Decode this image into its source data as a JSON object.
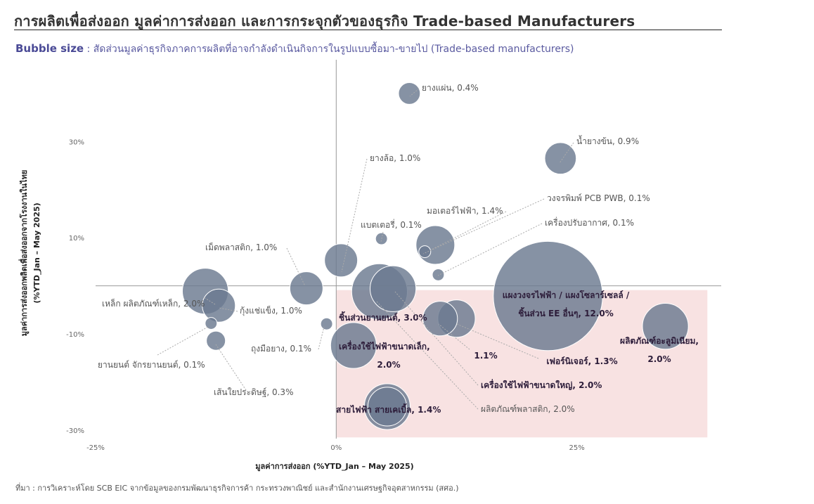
{
  "title": "การผลิตเพื่อส่งออก มูลค่าการส่งออก และการกระจุกตัวของธุรกิจ Trade-based Manufacturers",
  "subtitle": {
    "bold": "Bubble size",
    "text": " : สัดส่วนมูลค่าธุรกิจภาคการผลิตที่อาจกำลังดำเนินกิจการในรูปแบบซื้อมา-ขายไป (Trade-based manufacturers)"
  },
  "source": "ที่มา : การวิเคราะห์โดย SCB EIC จากข้อมูลของกรมพัฒนาธุรกิจการค้า กระทรวงพาณิชย์ และสำนักงานเศรษฐกิจอุตสาหกรรม (สศอ.)",
  "colors": {
    "bubble": "#6b7a90",
    "highlight": "#f8e2e2",
    "axis": "#999999"
  },
  "chart_data": {
    "type": "scatter",
    "xlabel": "มูลค่าการส่งออก (%YTD_Jan – May 2025)",
    "ylabel": "มูลค่าการส่งออกพลิตเพื่อส่งออกจากโรงงานในไทย\n(%YTD_Jan – May 2025)",
    "xlim": [
      -25,
      40
    ],
    "ylim": [
      -30,
      47
    ],
    "xticks": [
      {
        "v": -25,
        "t": "-25%"
      },
      {
        "v": 0,
        "t": "0%"
      },
      {
        "v": 25,
        "t": "25%"
      }
    ],
    "yticks": [
      {
        "v": 30,
        "t": "30%"
      },
      {
        "v": 10,
        "t": "10%"
      },
      {
        "v": -10,
        "t": "-10%"
      },
      {
        "v": -30,
        "t": "-30%"
      }
    ],
    "highlight_region": {
      "x": [
        0,
        39
      ],
      "y": [
        -31.5,
        0
      ]
    },
    "points": [
      {
        "name": "ยางแผ่น, 0.4%",
        "x": 7.6,
        "y": 40,
        "size": 0.4,
        "bold": false
      },
      {
        "name": "น้ำยางข้น, 0.9%",
        "x": 23.3,
        "y": 26.5,
        "size": 0.9,
        "bold": false
      },
      {
        "name": "ยางล้อ, 1.0%",
        "x": 0.5,
        "y": 5.3,
        "size": 1.0,
        "bold": false
      },
      {
        "name": "วงจรพิมพ์ PCB PWB, 0.1%",
        "x": 9.2,
        "y": 7.1,
        "size": 0.1,
        "bold": false
      },
      {
        "name": "มอเตอร์ไฟฟ้า, 1.4%",
        "x": 10.3,
        "y": 8.5,
        "size": 1.4,
        "bold": false
      },
      {
        "name": "แบตเตอรี่, 0.1%",
        "x": 4.7,
        "y": 9.8,
        "size": 0.1,
        "bold": false
      },
      {
        "name": "เครื่องปรับอากาศ, 0.1%",
        "x": 10.6,
        "y": 2.3,
        "size": 0.1,
        "bold": false
      },
      {
        "name": "เม็ดพลาสติก, 1.0%",
        "x": -3.1,
        "y": -0.5,
        "size": 1.0,
        "bold": false
      },
      {
        "name": "เหล็ก ผลิตภัณฑ์เหล็ก, 2.0%",
        "x": -13.6,
        "y": -1.1,
        "size": 2.0,
        "bold": false
      },
      {
        "name": "กุ้งแช่แข็ง, 1.0%",
        "x": -12.2,
        "y": -4.1,
        "size": 1.0,
        "bold": false
      },
      {
        "name": "ถุงมือยาง, 0.1%",
        "x": -1.0,
        "y": -7.9,
        "size": 0.1,
        "bold": false
      },
      {
        "name": "ยานยนต์ จักรยานยนต์, 0.1%",
        "x": -13.0,
        "y": -7.8,
        "size": 0.1,
        "bold": false
      },
      {
        "name": "เส้นใยประดิษฐ์, 0.3%",
        "x": -12.5,
        "y": -11.4,
        "size": 0.3,
        "bold": false
      },
      {
        "name": "ชิ้นส่วนยานยนต์, 3.0%",
        "x": 4.5,
        "y": -1.2,
        "size": 3.0,
        "bold": true
      },
      {
        "name": "แผงวงจรไฟฟ้า / แผงโซลาร์เซลล์ / ชิ้นส่วน EE อื่นๆ, 12.0%",
        "x": 22.0,
        "y": -2.1,
        "size": 12.0,
        "bold": true
      },
      {
        "name": "เครื่องใช้ไฟฟ้าขนาดเล็ก, 2.0%",
        "x": 1.8,
        "y": -12.4,
        "size": 2.0,
        "bold": true
      },
      {
        "name": "1.1%",
        "x": 10.8,
        "y": -6.8,
        "size": 1.1,
        "bold": true
      },
      {
        "name": "เฟอร์นิเจอร์, 1.3%",
        "x": 12.5,
        "y": -6.8,
        "size": 1.3,
        "bold": true
      },
      {
        "name": "เครื่องใช้ไฟฟ้าขนาดใหญ่, 2.0%",
        "x": 5.9,
        "y": -0.6,
        "size": 2.0,
        "bold": true
      },
      {
        "name": "ผลิตภัณฑ์อะลูมิเนียม, 2.0%",
        "x": 34.2,
        "y": -8.4,
        "size": 2.0,
        "bold": true
      },
      {
        "name": "ผลิตภัณฑ์พลาสติก, 2.0%",
        "x": 5.3,
        "y": -25.1,
        "size": 2.0,
        "bold": false
      },
      {
        "name": "สายไฟฟ้า สายเคเบิ้ล, 1.4%",
        "x": 5.3,
        "y": -25.1,
        "size": 1.4,
        "bold": true
      }
    ]
  }
}
